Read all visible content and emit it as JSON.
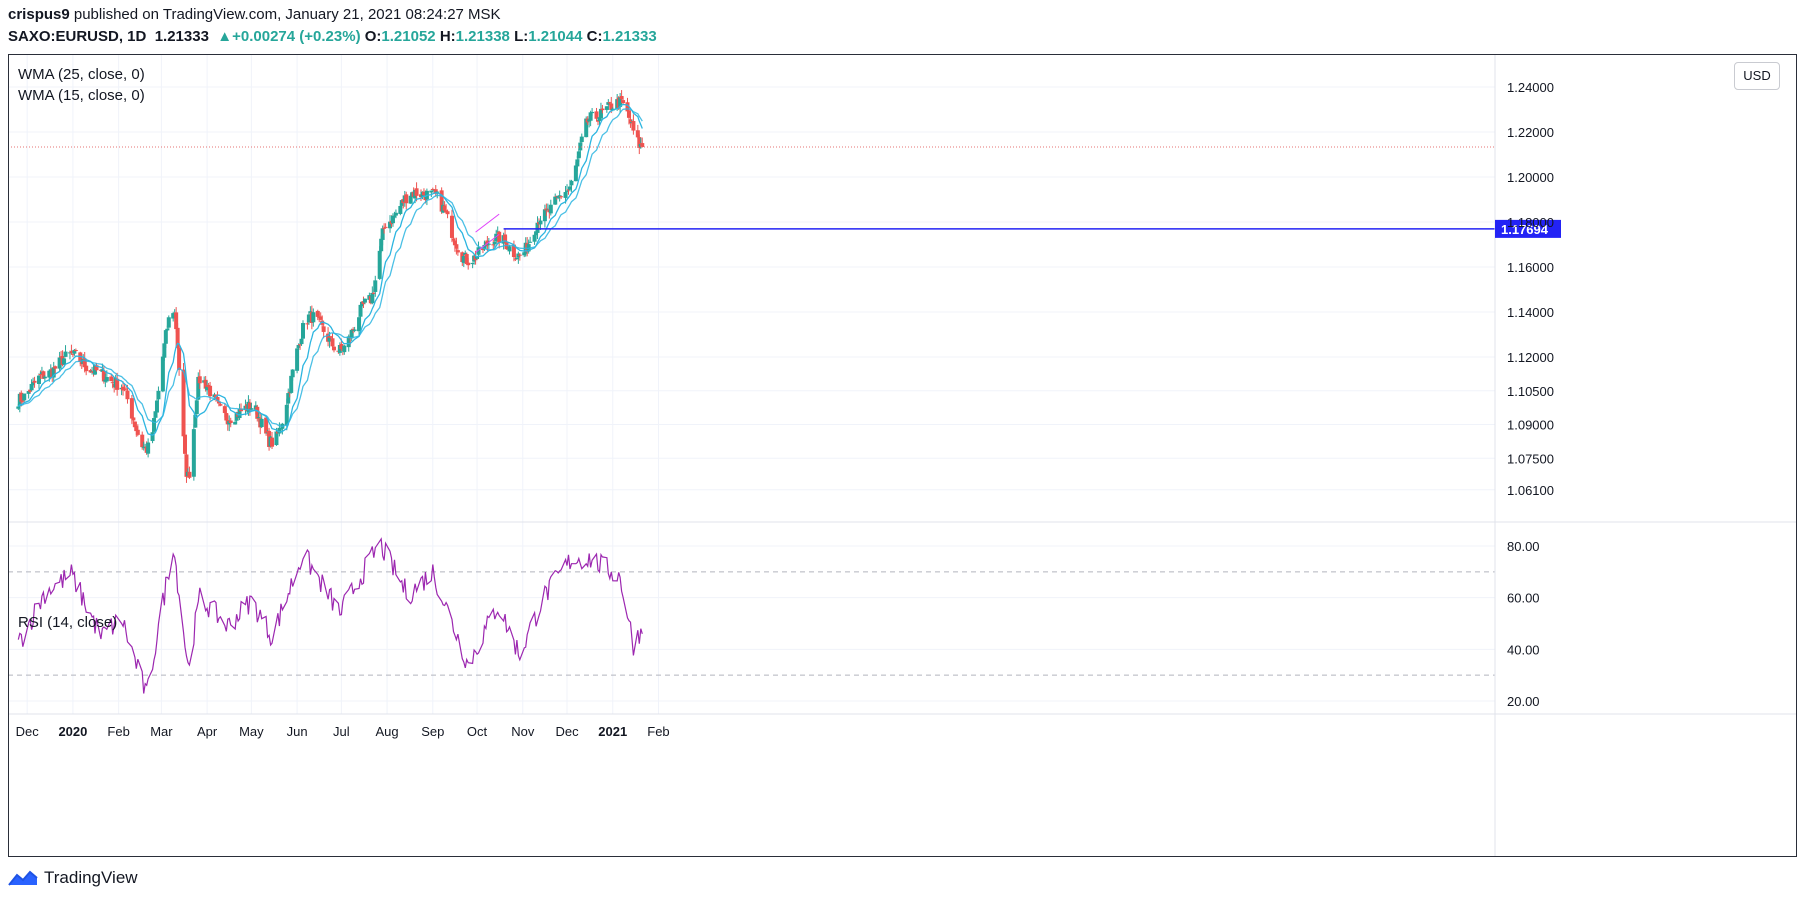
{
  "header": {
    "author": "crispus9",
    "published_text": "published on TradingView.com, January 21, 2021 08:24:27 MSK",
    "symbol": "SAXO:EURUSD, 1D",
    "last": "1.21333",
    "change_arrow": "▲",
    "change": "+0.00274 (+0.23%)",
    "o_label": "O:",
    "o": "1.21052",
    "h_label": "H:",
    "h": "1.21338",
    "l_label": "L:",
    "l": "1.21044",
    "c_label": "C:",
    "c": "1.21333"
  },
  "legend": {
    "wma25": "WMA (25, close, 0)",
    "wma15": "WMA (15, close, 0)",
    "rsi": "RSI (14, close)"
  },
  "currency_button": "USD",
  "logo_text": "TradingView",
  "colors": {
    "up": "#26a69a",
    "down": "#ef5350",
    "wma": "#2cb5e0",
    "rsi": "#9c27b0",
    "hline": "#2323f5",
    "last_price": "#e57373"
  },
  "chart_data": [
    {
      "type": "candlestick",
      "title": "SAXO:EURUSD, 1D",
      "ylim": [
        1.05,
        1.25
      ],
      "y_ticks": [
        "1.24000",
        "1.22000",
        "1.20000",
        "1.18000",
        "1.16000",
        "1.14000",
        "1.12000",
        "1.10500",
        "1.09000",
        "1.07500",
        "1.06100"
      ],
      "x_labels": [
        "Dec",
        "2020",
        "Feb",
        "Mar",
        "Apr",
        "May",
        "Jun",
        "Jul",
        "Aug",
        "Sep",
        "Oct",
        "Nov",
        "Dec",
        "2021",
        "Feb"
      ],
      "approx_close_path": [
        {
          "date": "2019-11-25",
          "close": 1.101
        },
        {
          "date": "2019-12-13",
          "close": 1.112
        },
        {
          "date": "2019-12-31",
          "close": 1.121
        },
        {
          "date": "2020-01-15",
          "close": 1.114
        },
        {
          "date": "2020-02-01",
          "close": 1.108
        },
        {
          "date": "2020-02-20",
          "close": 1.079
        },
        {
          "date": "2020-03-09",
          "close": 1.141
        },
        {
          "date": "2020-03-19",
          "close": 1.067
        },
        {
          "date": "2020-03-27",
          "close": 1.11
        },
        {
          "date": "2020-04-15",
          "close": 1.093
        },
        {
          "date": "2020-05-01",
          "close": 1.098
        },
        {
          "date": "2020-05-15",
          "close": 1.082
        },
        {
          "date": "2020-06-10",
          "close": 1.138
        },
        {
          "date": "2020-06-30",
          "close": 1.123
        },
        {
          "date": "2020-07-20",
          "close": 1.145
        },
        {
          "date": "2020-08-01",
          "close": 1.18
        },
        {
          "date": "2020-08-18",
          "close": 1.193
        },
        {
          "date": "2020-09-01",
          "close": 1.192
        },
        {
          "date": "2020-09-25",
          "close": 1.163
        },
        {
          "date": "2020-10-15",
          "close": 1.173
        },
        {
          "date": "2020-10-30",
          "close": 1.165
        },
        {
          "date": "2020-11-15",
          "close": 1.183
        },
        {
          "date": "2020-12-01",
          "close": 1.194
        },
        {
          "date": "2020-12-17",
          "close": 1.226
        },
        {
          "date": "2021-01-06",
          "close": 1.233
        },
        {
          "date": "2021-01-21",
          "close": 1.21333
        }
      ],
      "last_price": 1.21333,
      "horizontal_line": {
        "price": 1.17694,
        "label": "1.17694"
      },
      "series": [
        {
          "name": "WMA (25, close, 0)"
        },
        {
          "name": "WMA (15, close, 0)"
        }
      ]
    },
    {
      "type": "line",
      "title": "RSI (14, close)",
      "ylim": [
        15,
        85
      ],
      "y_ticks": [
        "80.00",
        "60.00",
        "40.00",
        "20.00"
      ],
      "bands": [
        70,
        30
      ],
      "approx_points": [
        {
          "date": "2019-11-25",
          "rsi": 42
        },
        {
          "date": "2019-12-13",
          "rsi": 62
        },
        {
          "date": "2019-12-31",
          "rsi": 69
        },
        {
          "date": "2020-01-20",
          "rsi": 45
        },
        {
          "date": "2020-02-03",
          "rsi": 52
        },
        {
          "date": "2020-02-20",
          "rsi": 22
        },
        {
          "date": "2020-03-09",
          "rsi": 81
        },
        {
          "date": "2020-03-19",
          "rsi": 33
        },
        {
          "date": "2020-03-27",
          "rsi": 60
        },
        {
          "date": "2020-04-15",
          "rsi": 49
        },
        {
          "date": "2020-05-01",
          "rsi": 59
        },
        {
          "date": "2020-05-15",
          "rsi": 45
        },
        {
          "date": "2020-06-05",
          "rsi": 77
        },
        {
          "date": "2020-06-30",
          "rsi": 54
        },
        {
          "date": "2020-07-27",
          "rsi": 81
        },
        {
          "date": "2020-08-15",
          "rsi": 61
        },
        {
          "date": "2020-09-01",
          "rsi": 70
        },
        {
          "date": "2020-09-25",
          "rsi": 34
        },
        {
          "date": "2020-10-15",
          "rsi": 57
        },
        {
          "date": "2020-10-30",
          "rsi": 38
        },
        {
          "date": "2020-11-15",
          "rsi": 60
        },
        {
          "date": "2020-12-04",
          "rsi": 75
        },
        {
          "date": "2020-12-17",
          "rsi": 75
        },
        {
          "date": "2021-01-06",
          "rsi": 68
        },
        {
          "date": "2021-01-15",
          "rsi": 42
        },
        {
          "date": "2021-01-21",
          "rsi": 48
        }
      ]
    }
  ]
}
